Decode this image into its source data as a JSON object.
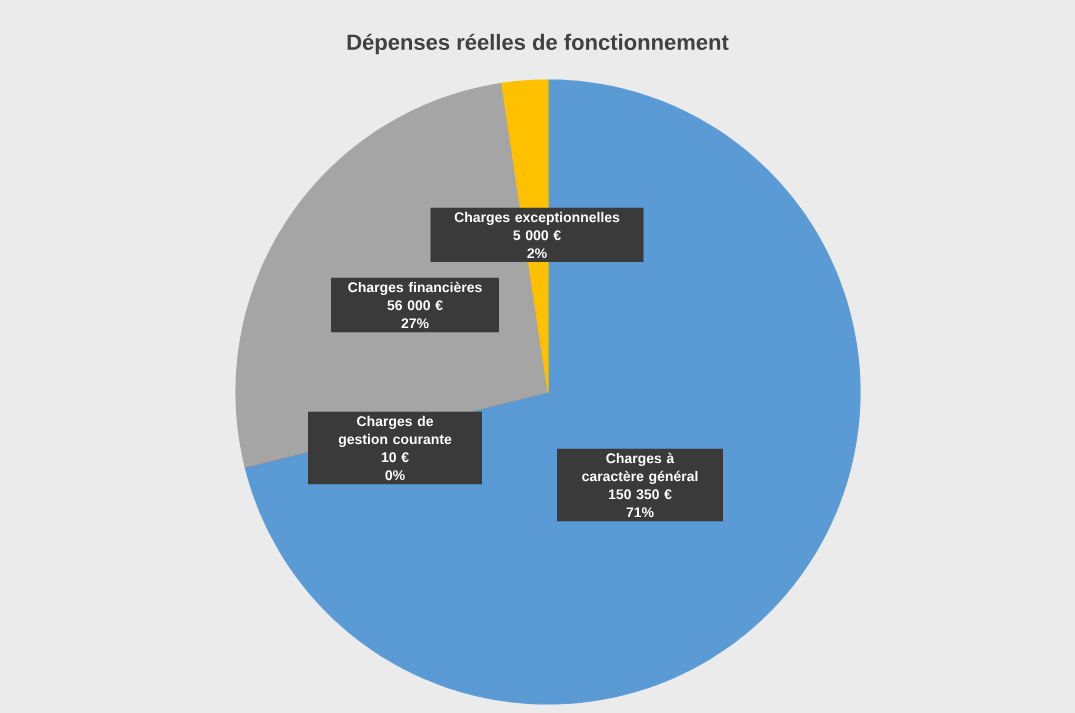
{
  "chart_data": {
    "type": "pie",
    "title": "Dépenses réelles de fonctionnement",
    "categories": [
      "Charges à caractère général",
      "Charges de gestion courante",
      "Charges financières",
      "Charges exceptionnelles"
    ],
    "values": [
      150350,
      10,
      56000,
      5000
    ],
    "value_labels": [
      "150 350 €",
      "10 €",
      "56 000 €",
      "5 000 €"
    ],
    "annotations": [
      "71%",
      "0%",
      "27%",
      "2%"
    ],
    "colors": [
      "#5b9bd5",
      "#ed7d31",
      "#a5a5a5",
      "#ffc000"
    ]
  }
}
